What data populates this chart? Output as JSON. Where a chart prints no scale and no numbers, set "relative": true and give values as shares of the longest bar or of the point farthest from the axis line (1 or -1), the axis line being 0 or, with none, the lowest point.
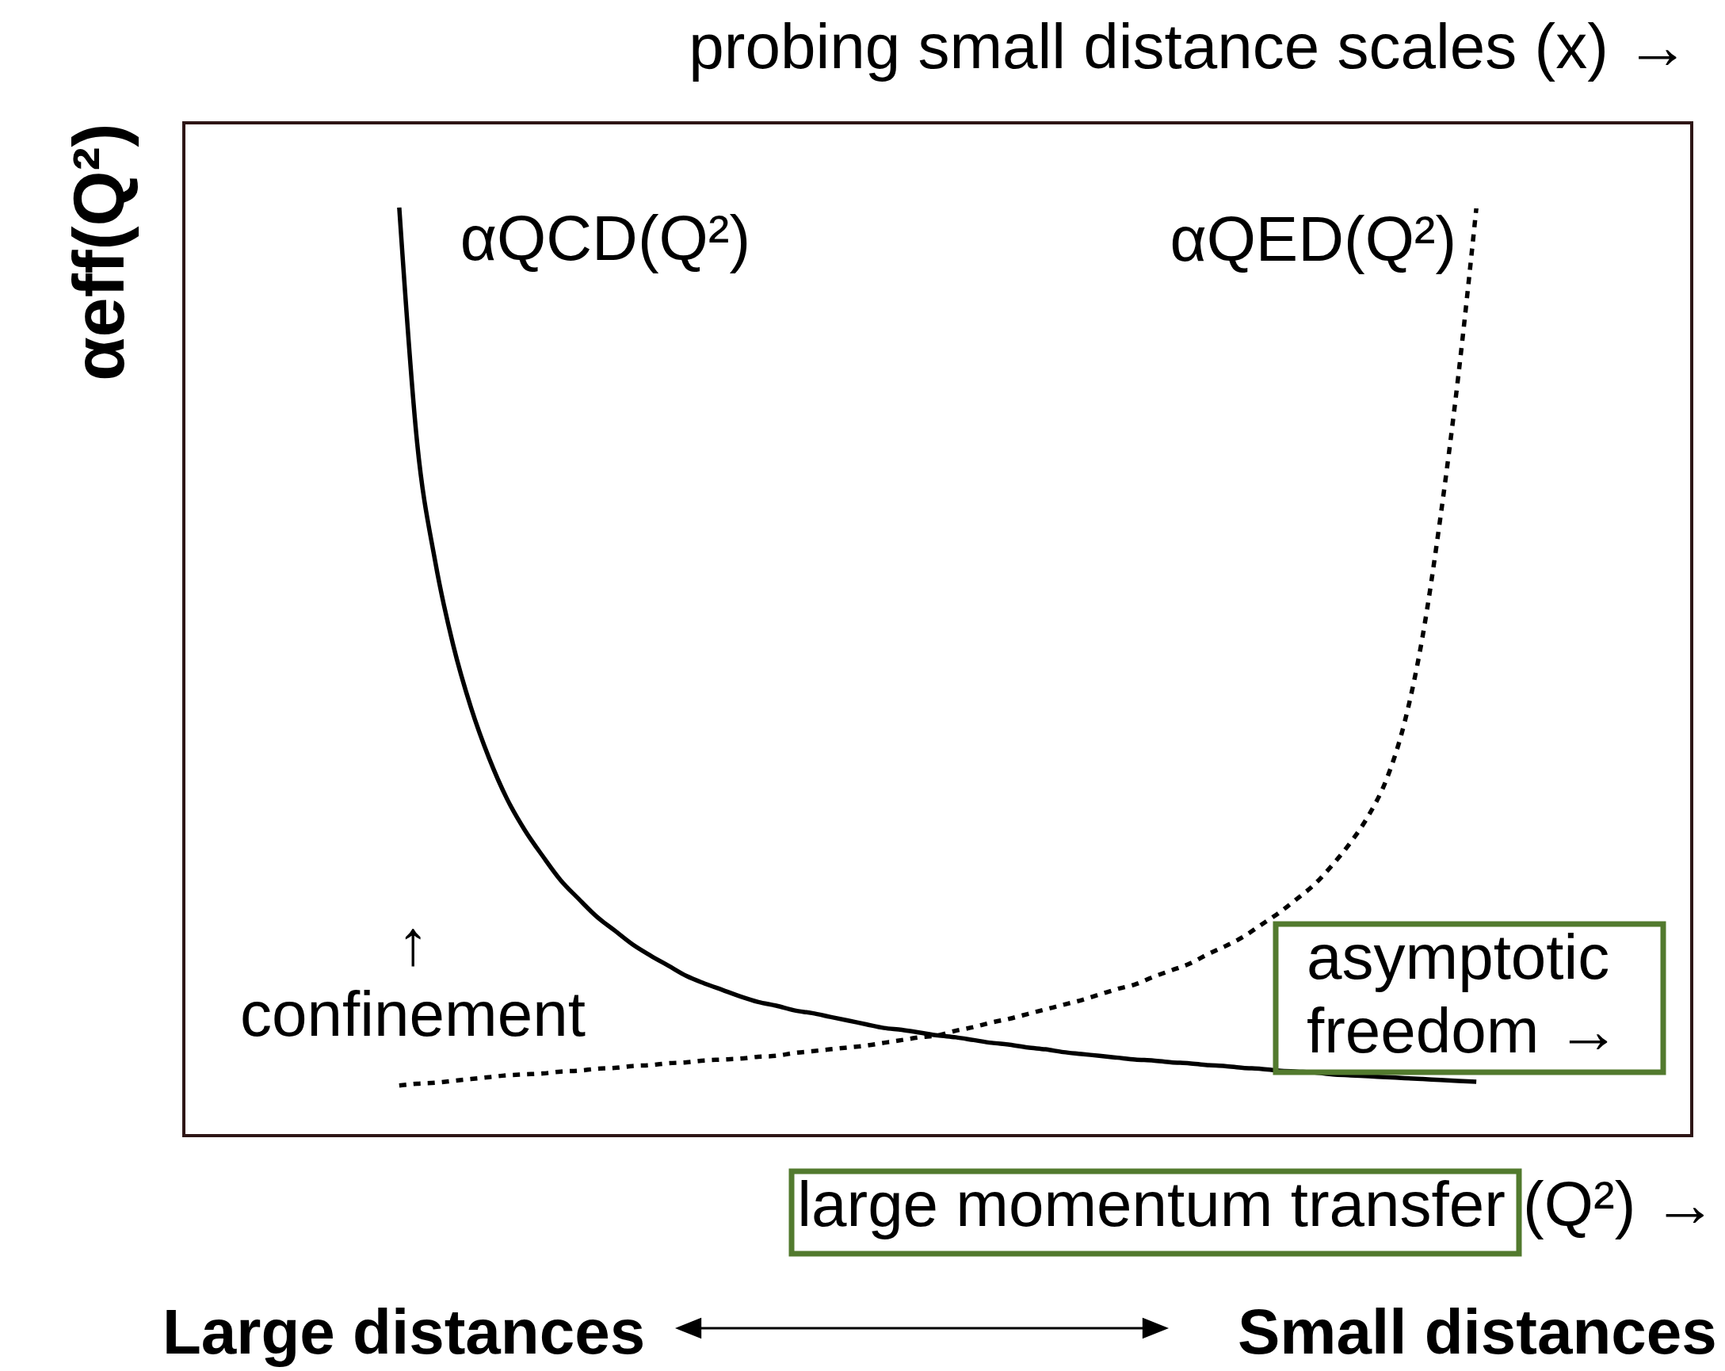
{
  "chart_data": {
    "type": "line",
    "relative": true,
    "x2label": "probing small distance scales (x) →",
    "xlabel": "large momentum transfer (Q²) →",
    "ylabel": "αeff(Q²)",
    "categories": [
      null,
      null,
      null,
      null,
      null,
      null,
      null,
      null,
      null,
      null,
      null,
      null,
      null,
      null,
      null,
      null,
      null,
      null,
      null,
      null,
      null,
      null,
      null,
      null,
      null,
      null,
      null,
      null,
      null,
      null,
      null,
      null,
      null,
      null,
      null,
      null,
      null,
      null,
      null,
      null,
      null,
      null,
      null,
      null,
      null,
      null,
      null,
      null,
      null,
      null,
      null,
      null,
      null,
      null,
      null,
      null,
      null,
      null,
      null,
      null,
      null
    ],
    "series": [
      {
        "name": "αQCD(Q²)",
        "color": "#000000",
        "line_style": "solid",
        "values": [
          1,
          0.746,
          0.619,
          0.529,
          0.461,
          0.407,
          0.363,
          0.329,
          0.301,
          0.275,
          0.255,
          0.236,
          0.221,
          0.206,
          0.194,
          0.183,
          0.172,
          0.164,
          0.157,
          0.15,
          0.144,
          0.14,
          0.135,
          0.132,
          0.128,
          0.124,
          0.12,
          0.116,
          0.114,
          0.111,
          0.108,
          0.106,
          0.103,
          0.1,
          0.098,
          0.095,
          0.093,
          0.09,
          0.088,
          0.086,
          0.084,
          0.082,
          0.081,
          0.079,
          0.078,
          0.076,
          0.075,
          0.073,
          0.072,
          0.07,
          0.069,
          0.068,
          0.066,
          0.065,
          0.064,
          0.063,
          0.062,
          0.061,
          0.06,
          0.059,
          0.058
        ]
      },
      {
        "name": "αQED(Q²)",
        "color": "#000000",
        "line_style": "dotted",
        "values": [
          0.054,
          0.056,
          0.057,
          0.059,
          0.061,
          0.063,
          0.065,
          0.066,
          0.067,
          0.069,
          0.07,
          0.072,
          0.073,
          0.075,
          0.076,
          0.078,
          0.079,
          0.081,
          0.082,
          0.083,
          0.085,
          0.086,
          0.089,
          0.091,
          0.093,
          0.095,
          0.097,
          0.1,
          0.103,
          0.106,
          0.108,
          0.113,
          0.117,
          0.122,
          0.126,
          0.131,
          0.136,
          0.141,
          0.146,
          0.152,
          0.158,
          0.163,
          0.171,
          0.178,
          0.185,
          0.195,
          0.204,
          0.214,
          0.227,
          0.24,
          0.255,
          0.271,
          0.292,
          0.316,
          0.345,
          0.384,
          0.445,
          0.537,
          0.666,
          0.819,
          0.999
        ]
      }
    ],
    "annotations": [
      "↑\nconfinement",
      "asymptotic\nfreedom →",
      "Large distances",
      "Small distances"
    ]
  }
}
